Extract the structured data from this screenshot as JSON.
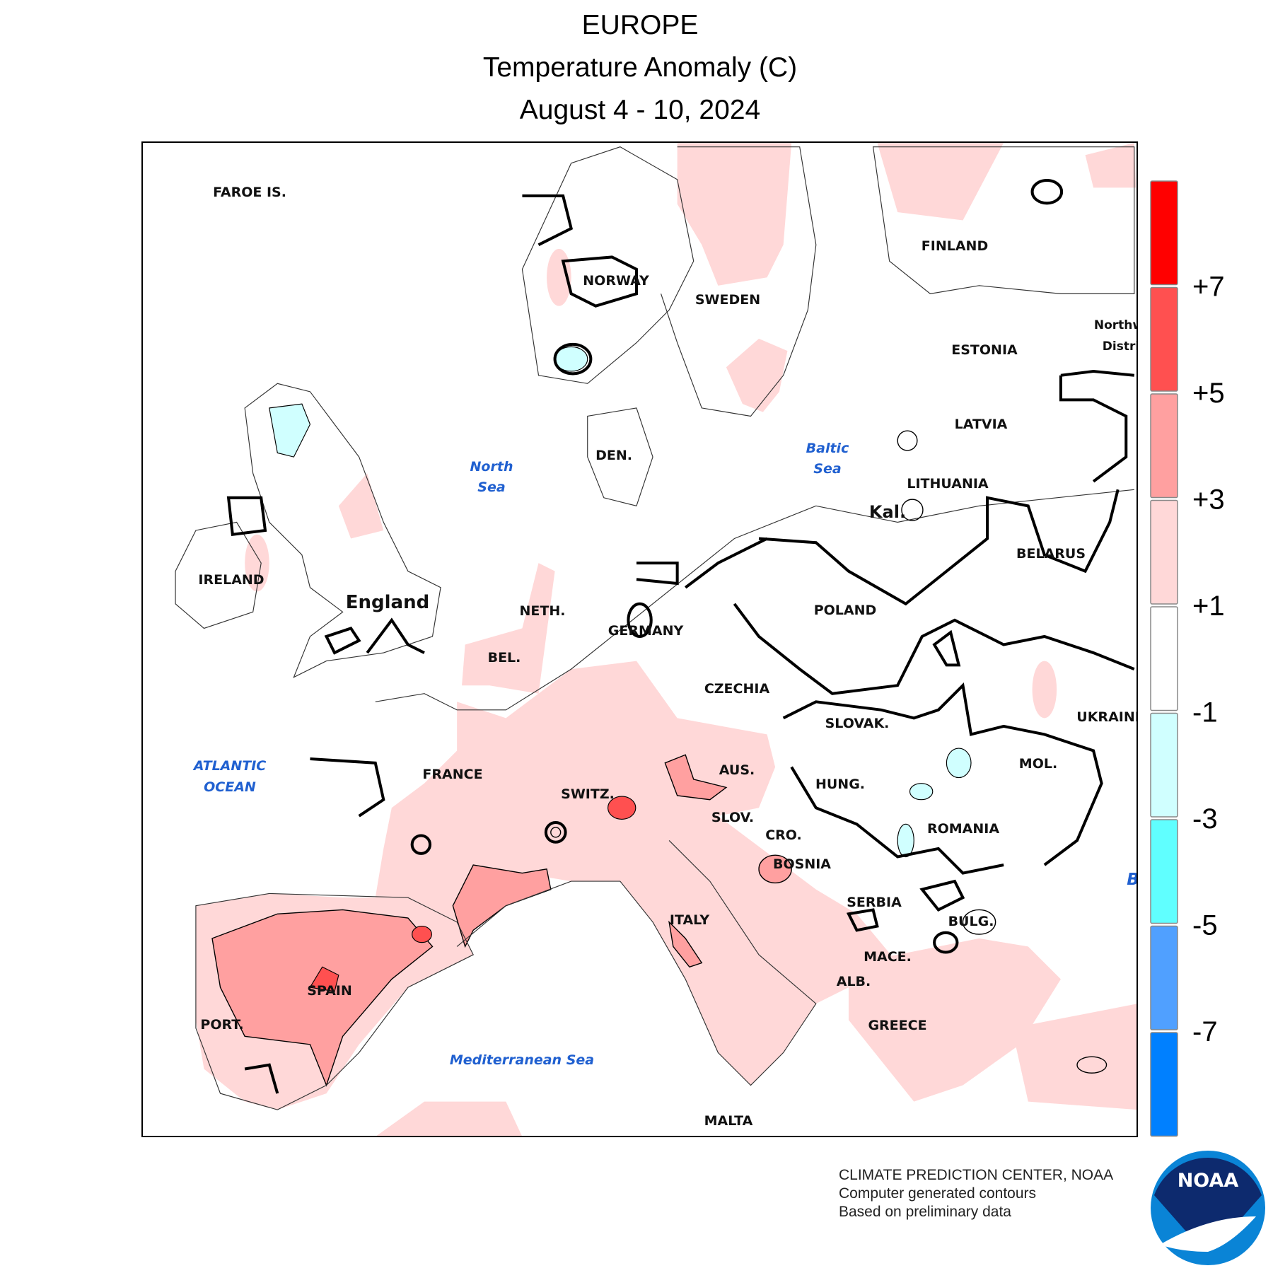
{
  "header": {
    "title": "EUROPE",
    "subtitle": "Temperature Anomaly (C)",
    "dates": "August 4 - 10, 2024"
  },
  "map": {
    "labels": [
      "FAROE IS.",
      "NORWAY",
      "SWEDEN",
      "FINLAND",
      "ESTONIA",
      "LATVIA",
      "LITHUANIA",
      "Kal.",
      "BELARUS",
      "Northw",
      "Distri",
      "DEN.",
      "IRELAND",
      "England",
      "NETH.",
      "BEL.",
      "GERMANY",
      "POLAND",
      "CZECHIA",
      "SLOVAK.",
      "UKRAINE",
      "FRANCE",
      "SWITZ.",
      "AUS.",
      "HUNG.",
      "MOL.",
      "SLOV.",
      "CRO.",
      "ROMANIA",
      "BOSNIA",
      "SERBIA",
      "BULG.",
      "ITALY",
      "MACE.",
      "ALB.",
      "SPAIN",
      "PORT.",
      "GREECE",
      "MALTA"
    ],
    "water_labels": [
      "North",
      "Sea",
      "Baltic",
      "Sea",
      "ATLANTIC",
      "OCEAN",
      "Mediterranean Sea",
      "B"
    ]
  },
  "legend": {
    "colors": [
      "#ff0000",
      "#ff5050",
      "#ffa0a0",
      "#ffd8d8",
      "#ffffff",
      "#d0ffff",
      "#60ffff",
      "#50a0ff",
      "#0080ff"
    ],
    "ticks": [
      "+7",
      "+5",
      "+3",
      "+1",
      "-1",
      "-3",
      "-5",
      "-7"
    ]
  },
  "footer": {
    "lines": [
      "CLIMATE PREDICTION CENTER, NOAA",
      "Computer generated contours",
      "Based on preliminary data"
    ],
    "logo": "NOAA"
  }
}
